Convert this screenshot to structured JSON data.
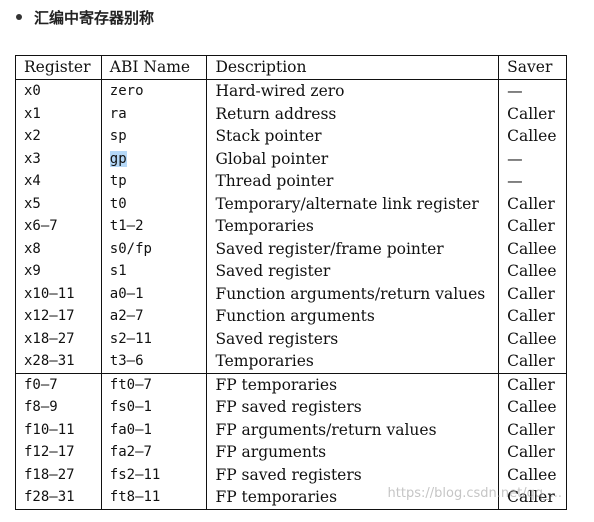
{
  "heading": "汇编中寄存器别称",
  "table": {
    "headers": [
      "Register",
      "ABI Name",
      "Description",
      "Saver"
    ],
    "rows": [
      {
        "register": "x0",
        "abi": "zero",
        "description": "Hard-wired zero",
        "saver": "—"
      },
      {
        "register": "x1",
        "abi": "ra",
        "description": "Return address",
        "saver": "Caller"
      },
      {
        "register": "x2",
        "abi": "sp",
        "description": "Stack pointer",
        "saver": "Callee"
      },
      {
        "register": "x3",
        "abi": "gp",
        "description": "Global pointer",
        "saver": "—"
      },
      {
        "register": "x4",
        "abi": "tp",
        "description": "Thread pointer",
        "saver": "—"
      },
      {
        "register": "x5",
        "abi": "t0",
        "description": "Temporary/alternate link register",
        "saver": "Caller"
      },
      {
        "register": "x6–7",
        "abi": "t1–2",
        "description": "Temporaries",
        "saver": "Caller"
      },
      {
        "register": "x8",
        "abi": "s0/fp",
        "description": "Saved register/frame pointer",
        "saver": "Callee"
      },
      {
        "register": "x9",
        "abi": "s1",
        "description": "Saved register",
        "saver": "Callee"
      },
      {
        "register": "x10–11",
        "abi": "a0–1",
        "description": "Function arguments/return values",
        "saver": "Caller"
      },
      {
        "register": "x12–17",
        "abi": "a2–7",
        "description": "Function arguments",
        "saver": "Caller"
      },
      {
        "register": "x18–27",
        "abi": "s2–11",
        "description": "Saved registers",
        "saver": "Callee"
      },
      {
        "register": "x28–31",
        "abi": "t3–6",
        "description": "Temporaries",
        "saver": "Caller"
      },
      {
        "register": "f0–7",
        "abi": "ft0–7",
        "description": "FP temporaries",
        "saver": "Caller"
      },
      {
        "register": "f8–9",
        "abi": "fs0–1",
        "description": "FP saved registers",
        "saver": "Callee"
      },
      {
        "register": "f10–11",
        "abi": "fa0–1",
        "description": "FP arguments/return values",
        "saver": "Caller"
      },
      {
        "register": "f12–17",
        "abi": "fa2–7",
        "description": "FP arguments",
        "saver": "Caller"
      },
      {
        "register": "f18–27",
        "abi": "fs2–11",
        "description": "FP saved registers",
        "saver": "Callee"
      },
      {
        "register": "f28–31",
        "abi": "ft8–11",
        "description": "FP temporaries",
        "saver": "Caller"
      }
    ],
    "group_starts": [
      13
    ],
    "highlighted_cell": {
      "row": 3,
      "column": "abi"
    }
  },
  "watermark": "https://blog.csdn.net/qq_..."
}
